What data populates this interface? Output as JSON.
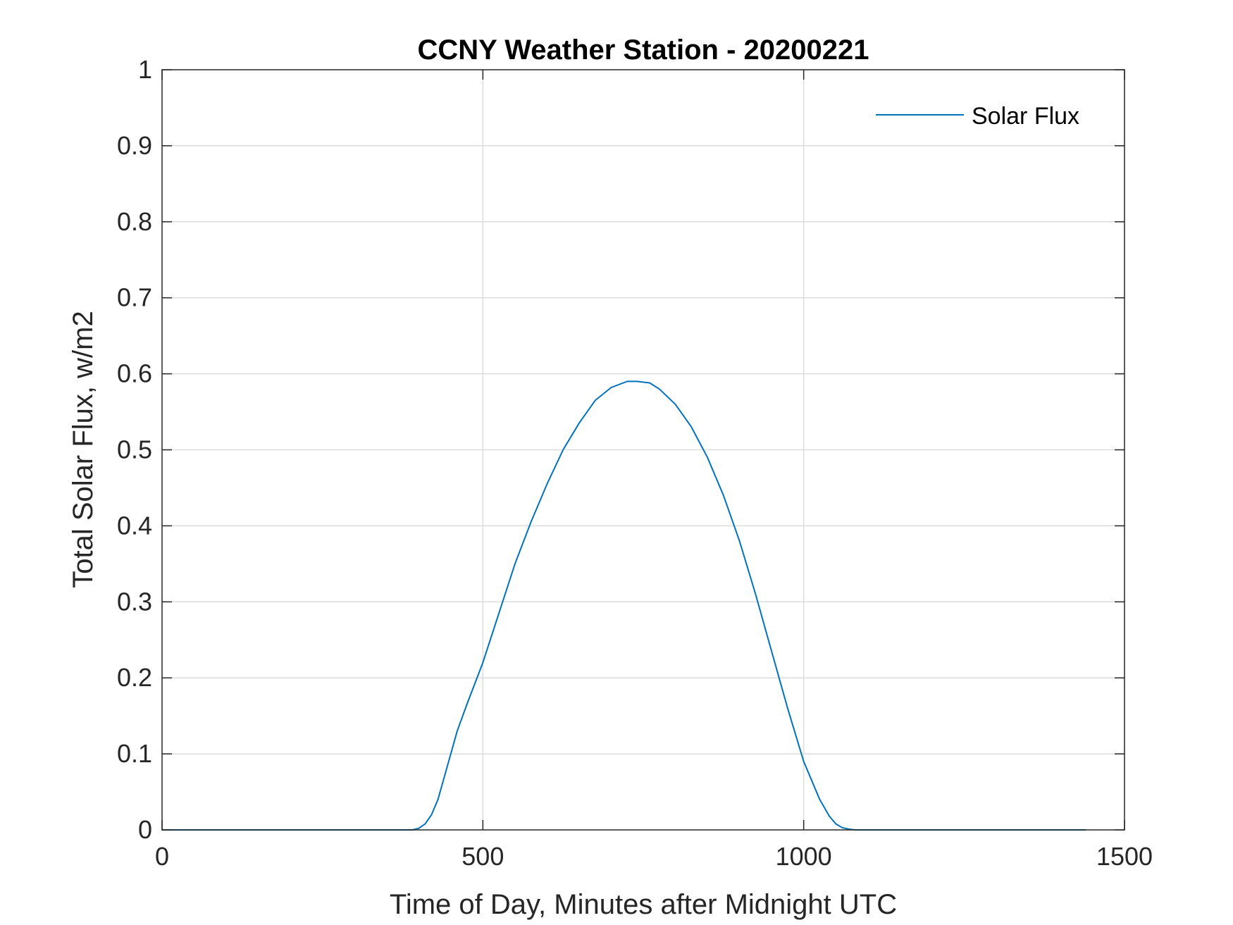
{
  "chart_data": {
    "type": "line",
    "title": "CCNY Weather Station - 20200221",
    "xlabel": "Time of Day, Minutes after Midnight UTC",
    "ylabel": "Total Solar Flux, w/m2",
    "xlim": [
      0,
      1500
    ],
    "ylim": [
      0,
      1
    ],
    "xticks": [
      0,
      500,
      1000,
      1500
    ],
    "xtick_labels": [
      "0",
      "500",
      "1000",
      "1500"
    ],
    "yticks": [
      0,
      0.1,
      0.2,
      0.3,
      0.4,
      0.5,
      0.6,
      0.7,
      0.8,
      0.9,
      1
    ],
    "ytick_labels": [
      "0",
      "0.1",
      "0.2",
      "0.3",
      "0.4",
      "0.5",
      "0.6",
      "0.7",
      "0.8",
      "0.9",
      "1"
    ],
    "grid": true,
    "legend_position": "top-right",
    "series": [
      {
        "name": "Solar Flux",
        "color": "#0072BD",
        "x": [
          0,
          100,
          200,
          300,
          390,
          400,
          410,
          420,
          430,
          440,
          450,
          460,
          475,
          500,
          525,
          550,
          575,
          600,
          625,
          650,
          675,
          700,
          725,
          740,
          760,
          775,
          800,
          825,
          850,
          875,
          900,
          925,
          950,
          975,
          1000,
          1025,
          1040,
          1050,
          1060,
          1070,
          1080,
          1100,
          1200,
          1300,
          1440
        ],
        "y": [
          0,
          0,
          0,
          0,
          0,
          0.002,
          0.008,
          0.02,
          0.04,
          0.07,
          0.1,
          0.13,
          0.165,
          0.22,
          0.285,
          0.35,
          0.405,
          0.455,
          0.5,
          0.535,
          0.565,
          0.582,
          0.59,
          0.59,
          0.588,
          0.58,
          0.56,
          0.53,
          0.49,
          0.44,
          0.38,
          0.31,
          0.235,
          0.16,
          0.09,
          0.04,
          0.018,
          0.008,
          0.003,
          0.001,
          0,
          0,
          0,
          0,
          0
        ]
      }
    ]
  }
}
